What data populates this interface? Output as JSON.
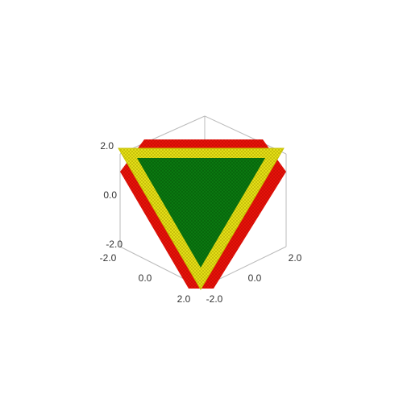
{
  "chart_data": {
    "type": "surface3d",
    "title": "",
    "xlabel": "",
    "ylabel": "",
    "zlabel": "",
    "x_ticks": [
      "-2.0",
      "0.0",
      "2.0"
    ],
    "y_ticks": [
      "-2.0",
      "0.0",
      "2.0"
    ],
    "z_ticks": [
      "-2.0",
      "0.0",
      "2.0"
    ],
    "xlim": [
      -2.0,
      2.0
    ],
    "ylim": [
      -2.0,
      2.0
    ],
    "zlim": [
      -2.0,
      2.0
    ],
    "grid": false,
    "box": true,
    "surfaces": [
      {
        "name": "",
        "shape": "hexagon",
        "color": "#e8140c",
        "mesh_color": "#c40800"
      },
      {
        "name": "",
        "shape": "triangle-outer",
        "color": "#e8e31a",
        "mesh_color": "#b5ad00"
      },
      {
        "name": "",
        "shape": "triangle-inner",
        "color": "#0a7a10",
        "mesh_color": "#055c08"
      }
    ],
    "colors": {
      "box": "#bbbbbb",
      "text": "#333333"
    }
  }
}
